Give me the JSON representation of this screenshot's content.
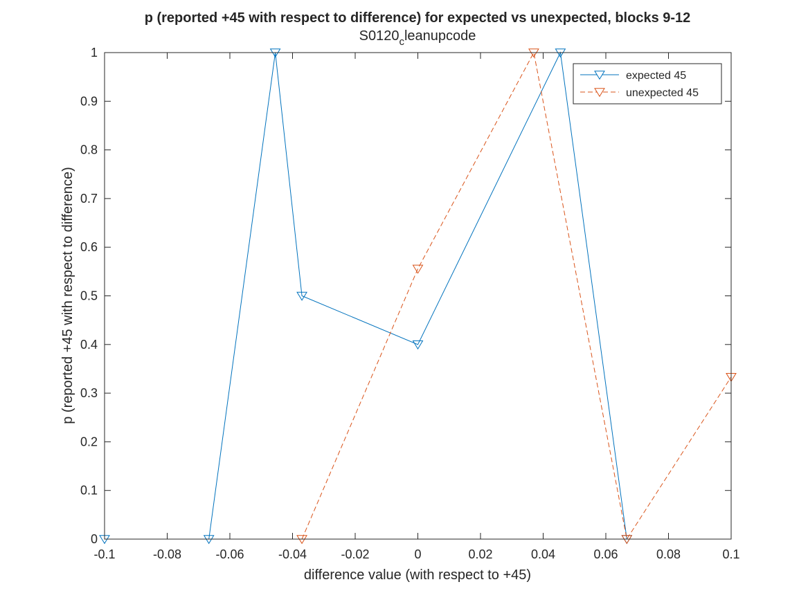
{
  "chart_data": {
    "type": "line",
    "title": "p  (reported +45 with respect to difference) for expected vs unexpected, blocks 9-12",
    "subtitle": {
      "main": "S0120",
      "subscript": "c",
      "rest": "leanupcode"
    },
    "xlabel": "difference value (with respect to +45)",
    "ylabel": "p (reported +45 with respect to difference)",
    "xlim": [
      -0.1,
      0.1
    ],
    "ylim": [
      0,
      1
    ],
    "xticks": [
      -0.1,
      -0.08,
      -0.06,
      -0.04,
      -0.02,
      0,
      0.02,
      0.04,
      0.06,
      0.08,
      0.1
    ],
    "xtick_labels": [
      "-0.1",
      "-0.08",
      "-0.06",
      "-0.04",
      "-0.02",
      "0",
      "0.02",
      "0.04",
      "0.06",
      "0.08",
      "0.1"
    ],
    "yticks": [
      0,
      0.1,
      0.2,
      0.3,
      0.4,
      0.5,
      0.6,
      0.7,
      0.8,
      0.9,
      1
    ],
    "ytick_labels": [
      "0",
      "0.1",
      "0.2",
      "0.3",
      "0.4",
      "0.5",
      "0.6",
      "0.7",
      "0.8",
      "0.9",
      "1"
    ],
    "grid": false,
    "legend_position": "top-right",
    "series": [
      {
        "name": "expected 45",
        "color": "#0072BD",
        "line_style": "solid",
        "marker": "down-triangle",
        "points": [
          {
            "x": -0.1,
            "y": 0
          },
          {
            "x": -0.0667,
            "y": 0
          },
          {
            "x": -0.0455,
            "y": 1
          },
          {
            "x": -0.037,
            "y": 0.5
          },
          {
            "x": 0,
            "y": 0.4
          },
          {
            "x": 0.0455,
            "y": 1
          },
          {
            "x": 0.0667,
            "y": 0
          }
        ]
      },
      {
        "name": "unexpected 45",
        "color": "#D95319",
        "line_style": "dashed",
        "marker": "down-triangle",
        "points": [
          {
            "x": -0.037,
            "y": 0
          },
          {
            "x": 0,
            "y": 0.5556
          },
          {
            "x": 0.037,
            "y": 1
          },
          {
            "x": 0.0667,
            "y": 0
          },
          {
            "x": 0.1,
            "y": 0.3333
          }
        ]
      }
    ]
  }
}
